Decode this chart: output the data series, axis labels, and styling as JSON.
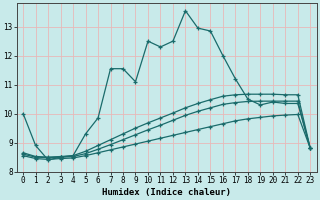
{
  "xlabel": "Humidex (Indice chaleur)",
  "background_color": "#c8eaea",
  "grid_color": "#e8b8b8",
  "line_color": "#1a6b6b",
  "xlim": [
    -0.5,
    23.5
  ],
  "ylim": [
    8,
    13.8
  ],
  "yticks": [
    8,
    9,
    10,
    11,
    12,
    13
  ],
  "xticks": [
    0,
    1,
    2,
    3,
    4,
    5,
    6,
    7,
    8,
    9,
    10,
    11,
    12,
    13,
    14,
    15,
    16,
    17,
    18,
    19,
    20,
    21,
    22,
    23
  ],
  "line1_x": [
    0,
    1,
    2,
    3,
    4,
    5,
    6,
    7,
    8,
    9,
    10,
    11,
    12,
    13,
    14,
    15,
    16,
    17,
    18,
    19,
    20,
    21,
    22,
    23
  ],
  "line1_y": [
    10.0,
    8.9,
    8.4,
    8.5,
    8.55,
    9.3,
    9.85,
    11.55,
    11.55,
    11.1,
    12.5,
    12.3,
    12.5,
    13.55,
    12.95,
    12.85,
    12.0,
    11.2,
    10.5,
    10.3,
    10.4,
    10.35,
    10.35,
    8.8
  ],
  "line2_x": [
    0,
    1,
    2,
    3,
    4,
    5,
    6,
    7,
    8,
    9,
    10,
    11,
    12,
    13,
    14,
    15,
    16,
    17,
    18,
    19,
    20,
    21,
    22,
    23
  ],
  "line2_y": [
    8.55,
    8.45,
    8.42,
    8.45,
    8.47,
    8.55,
    8.65,
    8.75,
    8.85,
    8.95,
    9.05,
    9.15,
    9.25,
    9.35,
    9.45,
    9.55,
    9.65,
    9.75,
    9.82,
    9.87,
    9.92,
    9.95,
    9.97,
    8.8
  ],
  "line3_x": [
    0,
    1,
    2,
    3,
    4,
    5,
    6,
    7,
    8,
    9,
    10,
    11,
    12,
    13,
    14,
    15,
    16,
    17,
    18,
    19,
    20,
    21,
    22,
    23
  ],
  "line3_y": [
    8.6,
    8.5,
    8.48,
    8.5,
    8.52,
    8.62,
    8.77,
    8.93,
    9.1,
    9.27,
    9.44,
    9.6,
    9.77,
    9.94,
    10.08,
    10.2,
    10.32,
    10.38,
    10.42,
    10.43,
    10.43,
    10.43,
    10.43,
    8.8
  ],
  "line4_x": [
    0,
    1,
    2,
    3,
    4,
    5,
    6,
    7,
    8,
    9,
    10,
    11,
    12,
    13,
    14,
    15,
    16,
    17,
    18,
    19,
    20,
    21,
    22,
    23
  ],
  "line4_y": [
    8.65,
    8.52,
    8.5,
    8.52,
    8.55,
    8.7,
    8.9,
    9.1,
    9.3,
    9.5,
    9.68,
    9.85,
    10.02,
    10.2,
    10.35,
    10.48,
    10.6,
    10.65,
    10.67,
    10.67,
    10.67,
    10.65,
    10.65,
    8.8
  ]
}
